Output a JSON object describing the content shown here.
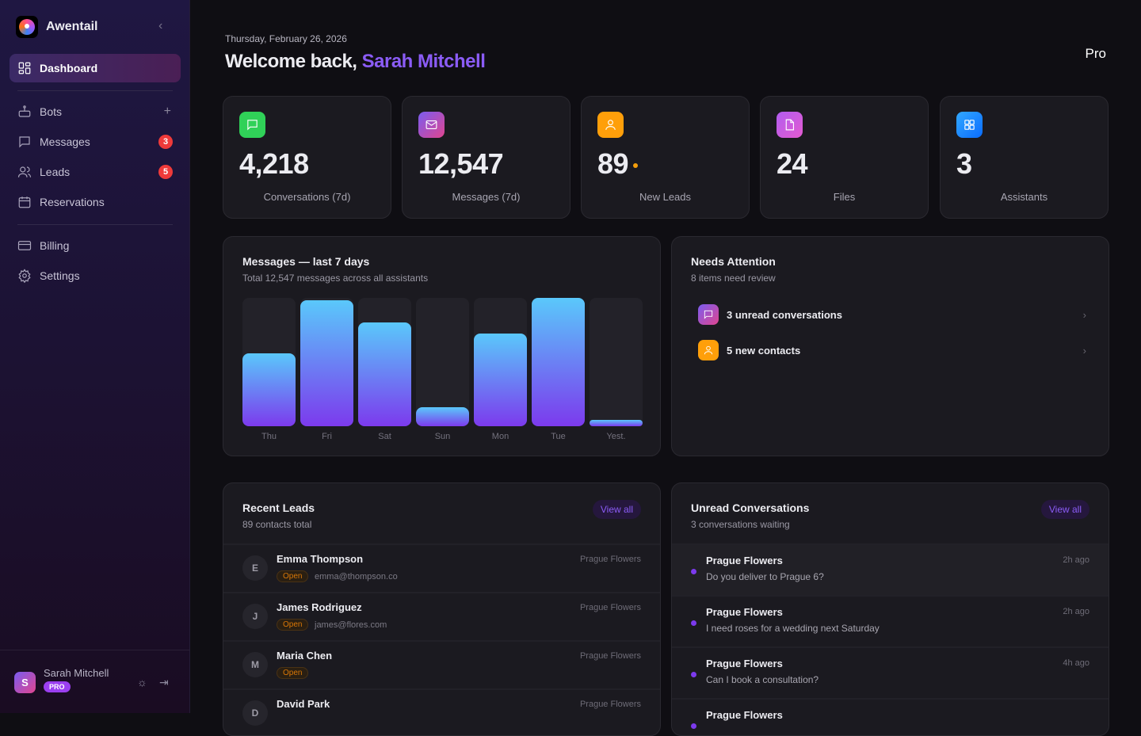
{
  "brand": {
    "name": "Awentail"
  },
  "sidebar": {
    "items": [
      {
        "label": "Dashboard",
        "icon": "grid-icon"
      },
      {
        "label": "Bots",
        "icon": "bot-icon"
      },
      {
        "label": "Messages",
        "icon": "message-icon",
        "badge": "3"
      },
      {
        "label": "Leads",
        "icon": "users-icon",
        "badge": "5"
      },
      {
        "label": "Reservations",
        "icon": "calendar-icon"
      },
      {
        "label": "Billing",
        "icon": "card-icon"
      },
      {
        "label": "Settings",
        "icon": "gear-icon"
      }
    ],
    "user": {
      "initial": "S",
      "name": "Sarah Mitchell",
      "plan": "PRO"
    }
  },
  "header": {
    "date": "Thursday, February 26, 2026",
    "welcome": "Welcome back,",
    "name": "Sarah Mitchell",
    "plan": "Pro"
  },
  "stats": [
    {
      "value": "4,218",
      "label": "Conversations (7d)",
      "color": "#30d158"
    },
    {
      "value": "12,547",
      "label": "Messages (7d)",
      "color": "#a855f7"
    },
    {
      "value": "89",
      "label": "New Leads",
      "color": "#ff9f0a"
    },
    {
      "value": "24",
      "label": "Files",
      "color": "#c95cf0"
    },
    {
      "value": "3",
      "label": "Assistants",
      "color": "#0a84ff"
    }
  ],
  "chart": {
    "title": "Messages — last 7 days",
    "subtitle": "Total 12,547 messages across all assistants"
  },
  "chart_data": {
    "type": "bar",
    "categories": [
      "Thu",
      "Fri",
      "Sat",
      "Sun",
      "Mon",
      "Tue",
      "Yest."
    ],
    "values_relative_percent": [
      57,
      98,
      81,
      15,
      72,
      100,
      5
    ],
    "title": "Messages — last 7 days"
  },
  "attention": {
    "title": "Needs Attention",
    "subtitle": "8 items need review",
    "items": [
      {
        "label": "3 unread conversations"
      },
      {
        "label": "5 new contacts"
      }
    ]
  },
  "leads": {
    "title": "Recent Leads",
    "subtitle": "89 contacts total",
    "view_all": "View all",
    "rows": [
      {
        "initial": "E",
        "name": "Emma Thompson",
        "status": "Open",
        "email": "emma@thompson.co",
        "source": "Prague Flowers"
      },
      {
        "initial": "J",
        "name": "James Rodriguez",
        "status": "Open",
        "email": "james@flores.com",
        "source": "Prague Flowers"
      },
      {
        "initial": "M",
        "name": "Maria Chen",
        "status": "Open",
        "email": "",
        "source": "Prague Flowers"
      },
      {
        "initial": "D",
        "name": "David Park",
        "status": "",
        "email": "",
        "source": "Prague Flowers"
      }
    ]
  },
  "conversations": {
    "title": "Unread Conversations",
    "subtitle": "3 conversations waiting",
    "view_all": "View all",
    "rows": [
      {
        "name": "Prague Flowers",
        "message": "Do you deliver to Prague 6?",
        "time": "2h ago"
      },
      {
        "name": "Prague Flowers",
        "message": "I need roses for a wedding next Saturday",
        "time": "2h ago"
      },
      {
        "name": "Prague Flowers",
        "message": "Can I book a consultation?",
        "time": "4h ago"
      },
      {
        "name": "Prague Flowers",
        "message": "",
        "time": ""
      }
    ]
  }
}
